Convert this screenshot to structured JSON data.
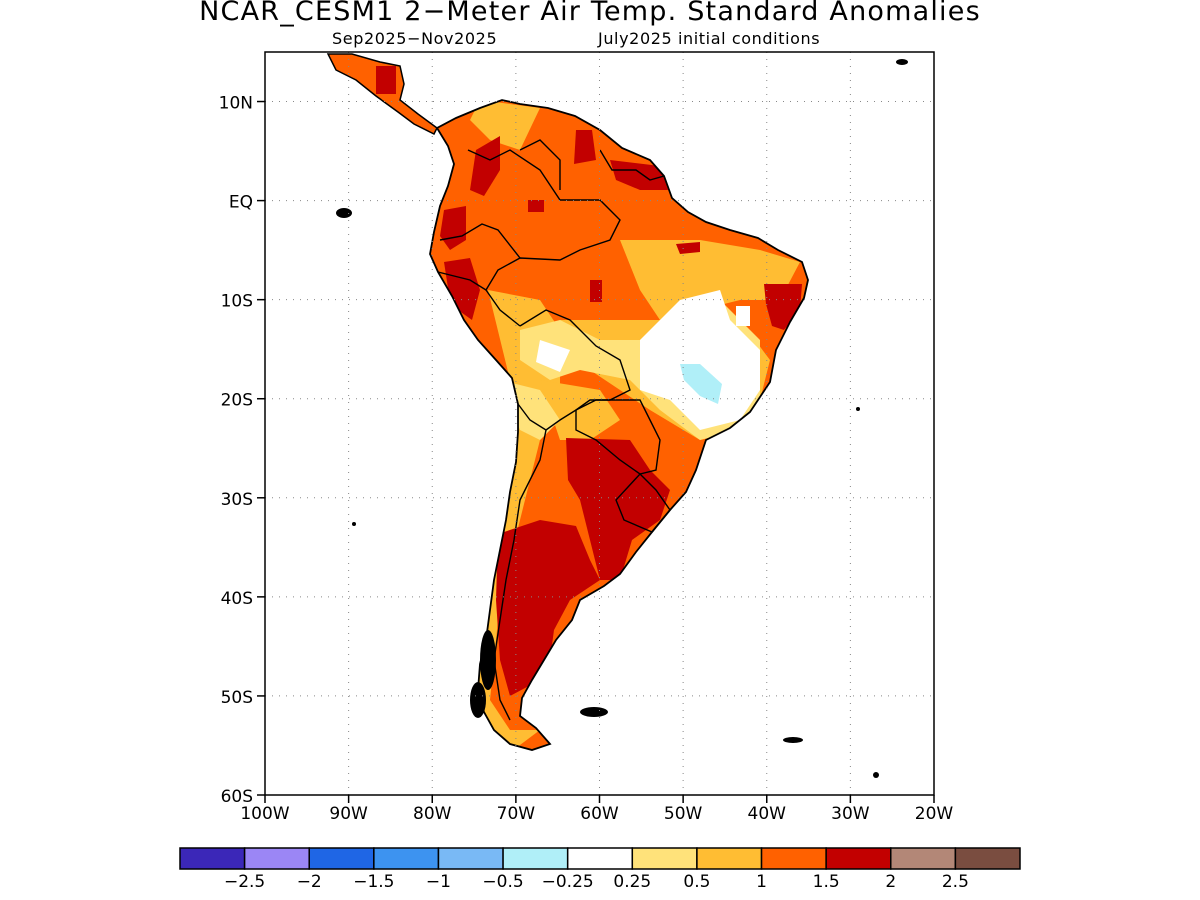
{
  "title": "NCAR_CESM1 2−Meter Air Temp. Standard Anomalies",
  "subtitle_left": "Sep2025−Nov2025",
  "subtitle_right": "July2025 initial conditions",
  "map": {
    "lat_range": [
      -60,
      15
    ],
    "lon_range": [
      -100,
      -20
    ],
    "lat_labels": [
      "10N",
      "EQ",
      "10S",
      "20S",
      "30S",
      "40S",
      "50S",
      "60S"
    ],
    "lon_labels": [
      "100W",
      "90W",
      "80W",
      "70W",
      "60W",
      "50W",
      "40W",
      "30W",
      "20W"
    ],
    "grid": "dotted",
    "region": "South America"
  },
  "colorbar": {
    "colors": [
      "#3b27b8",
      "#9b86f5",
      "#1f66e5",
      "#3d93f0",
      "#79b9f5",
      "#b0eff8",
      "#ffffff",
      "#ffe27a",
      "#ffbd33",
      "#ff6100",
      "#c20000",
      "#b38777",
      "#7a4d40"
    ],
    "labels": [
      "−2.5",
      "−2",
      "−1.5",
      "−1",
      "−0.5",
      "−0.25",
      "0.25",
      "0.5",
      "1",
      "1.5",
      "2",
      "2.5"
    ]
  }
}
